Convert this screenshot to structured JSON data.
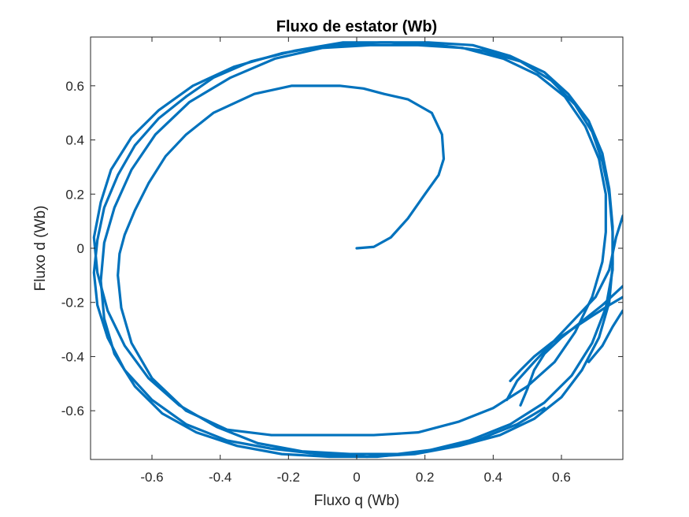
{
  "chart_data": {
    "type": "line",
    "title": "Fluxo de estator (Wb)",
    "xlabel": "Fluxo q (Wb)",
    "ylabel": "Fluxo d (Wb)",
    "xlim": [
      -0.78,
      0.78
    ],
    "ylim": [
      -0.78,
      0.78
    ],
    "xticks": [
      -0.6,
      -0.4,
      -0.2,
      0,
      0.2,
      0.4,
      0.6
    ],
    "xtick_labels": [
      "-0.6",
      "-0.4",
      "-0.2",
      "0",
      "0.2",
      "0.4",
      "0.6"
    ],
    "yticks": [
      -0.6,
      -0.4,
      -0.2,
      0,
      0.2,
      0.4,
      0.6
    ],
    "ytick_labels": [
      "-0.6",
      "-0.4",
      "-0.2",
      "0",
      "0.2",
      "0.4",
      "0.6"
    ],
    "grid": false,
    "box": true,
    "line_color": "#0072BD",
    "series": [
      {
        "x": [
          0.0,
          0.05,
          0.1,
          0.15,
          0.2,
          0.24,
          0.255,
          0.25,
          0.22,
          0.15,
          0.08,
          0.02,
          -0.05,
          -0.12,
          -0.19,
          -0.3,
          -0.42,
          -0.5,
          -0.56,
          -0.61,
          -0.65,
          -0.68,
          -0.695,
          -0.7,
          -0.69,
          -0.66,
          -0.6,
          -0.5,
          -0.38,
          -0.25,
          -0.1,
          0.05,
          0.18,
          0.3,
          0.4,
          0.5,
          0.58,
          0.64,
          0.69,
          0.72,
          0.73,
          0.73,
          0.71,
          0.67,
          0.61,
          0.53,
          0.43,
          0.31,
          0.18,
          0.04,
          -0.1,
          -0.24,
          -0.37,
          -0.49,
          -0.59,
          -0.66,
          -0.71,
          -0.74,
          -0.75,
          -0.74,
          -0.71,
          -0.65,
          -0.57,
          -0.47,
          -0.35,
          -0.22,
          -0.08,
          0.06,
          0.2,
          0.33,
          0.45,
          0.55,
          0.63,
          0.69,
          0.73,
          0.75,
          0.75,
          0.74,
          0.72,
          0.69,
          0.64,
          0.57,
          0.48,
          0.37,
          0.24,
          0.1,
          -0.04,
          -0.18,
          -0.31,
          -0.42,
          -0.5
        ],
        "y": [
          0.0,
          0.005,
          0.04,
          0.11,
          0.2,
          0.27,
          0.33,
          0.42,
          0.5,
          0.55,
          0.57,
          0.59,
          0.6,
          0.6,
          0.6,
          0.57,
          0.5,
          0.42,
          0.34,
          0.24,
          0.14,
          0.05,
          -0.02,
          -0.1,
          -0.22,
          -0.35,
          -0.48,
          -0.6,
          -0.67,
          -0.69,
          -0.69,
          -0.69,
          -0.68,
          -0.64,
          -0.59,
          -0.51,
          -0.42,
          -0.31,
          -0.18,
          -0.05,
          0.06,
          0.2,
          0.33,
          0.45,
          0.56,
          0.64,
          0.7,
          0.74,
          0.75,
          0.75,
          0.74,
          0.7,
          0.63,
          0.54,
          0.42,
          0.29,
          0.15,
          0.02,
          -0.12,
          -0.26,
          -0.39,
          -0.51,
          -0.61,
          -0.68,
          -0.73,
          -0.76,
          -0.77,
          -0.77,
          -0.75,
          -0.71,
          -0.65,
          -0.57,
          -0.47,
          -0.35,
          -0.22,
          -0.08,
          0.06,
          0.2,
          0.32,
          0.43,
          0.53,
          0.62,
          0.69,
          0.73,
          0.75,
          0.76,
          0.76,
          0.73,
          0.69,
          0.63,
          0.56
        ]
      },
      {
        "x": [
          -0.5,
          -0.58,
          -0.65,
          -0.7,
          -0.74,
          -0.76,
          -0.77,
          -0.76,
          -0.73,
          -0.68,
          -0.6,
          -0.5,
          -0.38,
          -0.25,
          -0.11,
          0.03,
          0.17,
          0.3,
          0.42,
          0.52,
          0.6,
          0.66,
          0.71,
          0.74,
          0.75,
          0.75,
          0.74,
          0.72,
          0.68,
          0.62,
          0.55,
          0.45,
          0.34,
          0.21,
          0.07,
          -0.08,
          -0.22,
          -0.36,
          -0.48,
          -0.58,
          -0.66,
          -0.72,
          -0.75,
          -0.77,
          -0.76,
          -0.73,
          -0.68,
          -0.61,
          -0.52,
          -0.41,
          -0.29,
          -0.16,
          -0.02,
          0.12,
          0.25,
          0.37,
          0.47,
          0.55
        ],
        "y": [
          0.56,
          0.48,
          0.38,
          0.27,
          0.15,
          0.03,
          -0.09,
          -0.21,
          -0.33,
          -0.45,
          -0.56,
          -0.65,
          -0.71,
          -0.74,
          -0.76,
          -0.77,
          -0.76,
          -0.73,
          -0.69,
          -0.63,
          -0.55,
          -0.45,
          -0.33,
          -0.2,
          -0.06,
          0.08,
          0.22,
          0.35,
          0.47,
          0.57,
          0.65,
          0.71,
          0.75,
          0.76,
          0.76,
          0.75,
          0.72,
          0.67,
          0.6,
          0.51,
          0.41,
          0.29,
          0.17,
          0.04,
          -0.09,
          -0.23,
          -0.36,
          -0.48,
          -0.58,
          -0.66,
          -0.72,
          -0.75,
          -0.76,
          -0.76,
          -0.74,
          -0.7,
          -0.65,
          -0.59
        ]
      },
      {
        "x": [
          0.45,
          0.48,
          0.52,
          0.57,
          0.63,
          0.69,
          0.74,
          0.78
        ],
        "y": [
          -0.49,
          -0.45,
          -0.4,
          -0.35,
          -0.3,
          -0.25,
          -0.21,
          -0.18
        ]
      },
      {
        "x": [
          0.48,
          0.5,
          0.52,
          0.55,
          0.6,
          0.66,
          0.72,
          0.78
        ],
        "y": [
          -0.58,
          -0.52,
          -0.45,
          -0.39,
          -0.33,
          -0.27,
          -0.21,
          -0.14
        ]
      },
      {
        "x": [
          0.44,
          0.47,
          0.52,
          0.58,
          0.64,
          0.7,
          0.74,
          0.76,
          0.78
        ],
        "y": [
          -0.56,
          -0.49,
          -0.42,
          -0.34,
          -0.26,
          -0.18,
          -0.08,
          0.04,
          0.12
        ]
      },
      {
        "x": [
          0.68,
          0.72,
          0.75,
          0.78
        ],
        "y": [
          -0.42,
          -0.36,
          -0.29,
          -0.23
        ]
      }
    ]
  }
}
